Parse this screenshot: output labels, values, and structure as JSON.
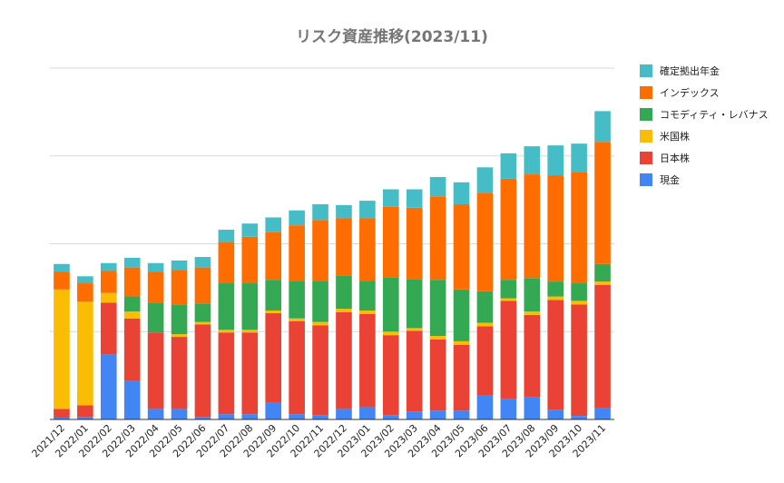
{
  "chart_data": {
    "type": "bar",
    "stacked": true,
    "title": "リスク資産推移(2023/11)",
    "xlabel": "",
    "ylabel": "",
    "grid": true,
    "legend_position": "right",
    "categories": [
      "2021/12",
      "2022/01",
      "2022/02",
      "2022/03",
      "2022/04",
      "2022/05",
      "2022/06",
      "2022/07",
      "2022/08",
      "2022/09",
      "2022/10",
      "2022/11",
      "2022/12",
      "2023/01",
      "2023/02",
      "2023/03",
      "2023/04",
      "2023/05",
      "2023/06",
      "2023/07",
      "2023/08",
      "2023/09",
      "2023/10",
      "2023/11"
    ],
    "ylim": [
      0,
      4
    ],
    "series": [
      {
        "name": "現金",
        "color": "#4285f4",
        "values": [
          0.02,
          0.03,
          0.74,
          0.44,
          0.12,
          0.12,
          0.03,
          0.06,
          0.06,
          0.19,
          0.06,
          0.05,
          0.12,
          0.14,
          0.05,
          0.09,
          0.1,
          0.1,
          0.27,
          0.23,
          0.25,
          0.11,
          0.04,
          0.13
        ]
      },
      {
        "name": "日本株",
        "color": "#ea4335",
        "values": [
          0.1,
          0.13,
          0.59,
          0.71,
          0.87,
          0.82,
          1.05,
          0.93,
          0.93,
          1.02,
          1.06,
          1.02,
          1.1,
          1.06,
          0.91,
          0.92,
          0.81,
          0.75,
          0.79,
          1.12,
          0.94,
          1.25,
          1.27,
          1.4
        ]
      },
      {
        "name": "米国株",
        "color": "#fbbc04",
        "values": [
          1.36,
          1.18,
          0.11,
          0.08,
          0.0,
          0.03,
          0.03,
          0.03,
          0.03,
          0.03,
          0.03,
          0.04,
          0.04,
          0.04,
          0.04,
          0.03,
          0.04,
          0.04,
          0.04,
          0.03,
          0.04,
          0.04,
          0.04,
          0.04
        ]
      },
      {
        "name": "コモディティ・レバナス",
        "color": "#34a853",
        "values": [
          0.0,
          0.0,
          0.0,
          0.17,
          0.34,
          0.34,
          0.21,
          0.53,
          0.53,
          0.35,
          0.43,
          0.47,
          0.38,
          0.34,
          0.62,
          0.56,
          0.64,
          0.59,
          0.36,
          0.21,
          0.38,
          0.17,
          0.2,
          0.2
        ]
      },
      {
        "name": "インデックス",
        "color": "#ff6d01",
        "values": [
          0.2,
          0.21,
          0.25,
          0.33,
          0.35,
          0.39,
          0.41,
          0.47,
          0.53,
          0.54,
          0.63,
          0.69,
          0.65,
          0.71,
          0.8,
          0.81,
          0.95,
          0.97,
          1.12,
          1.15,
          1.18,
          1.21,
          1.27,
          1.39
        ]
      },
      {
        "name": "確定拠出年金",
        "color": "#46bdc6",
        "values": [
          0.09,
          0.08,
          0.09,
          0.11,
          0.1,
          0.11,
          0.12,
          0.14,
          0.15,
          0.17,
          0.17,
          0.18,
          0.15,
          0.2,
          0.2,
          0.21,
          0.22,
          0.25,
          0.29,
          0.29,
          0.32,
          0.34,
          0.32,
          0.35
        ]
      }
    ]
  }
}
